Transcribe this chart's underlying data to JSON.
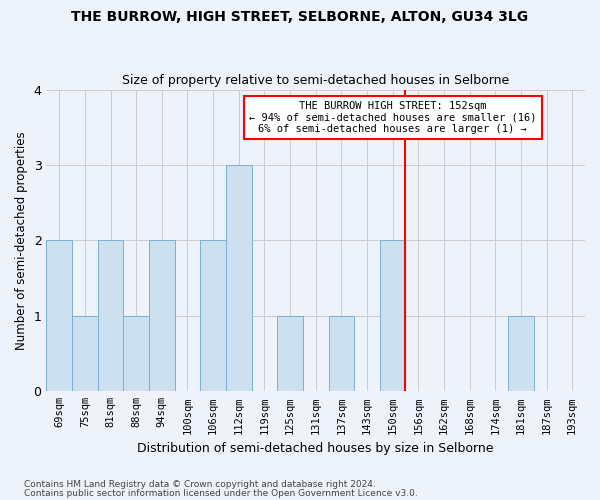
{
  "title": "THE BURROW, HIGH STREET, SELBORNE, ALTON, GU34 3LG",
  "subtitle": "Size of property relative to semi-detached houses in Selborne",
  "xlabel": "Distribution of semi-detached houses by size in Selborne",
  "ylabel": "Number of semi-detached properties",
  "footer1": "Contains HM Land Registry data © Crown copyright and database right 2024.",
  "footer2": "Contains public sector information licensed under the Open Government Licence v3.0.",
  "categories": [
    "69sqm",
    "75sqm",
    "81sqm",
    "88sqm",
    "94sqm",
    "100sqm",
    "106sqm",
    "112sqm",
    "119sqm",
    "125sqm",
    "131sqm",
    "137sqm",
    "143sqm",
    "150sqm",
    "156sqm",
    "162sqm",
    "168sqm",
    "174sqm",
    "181sqm",
    "187sqm",
    "193sqm"
  ],
  "values": [
    2,
    1,
    2,
    1,
    2,
    0,
    2,
    3,
    0,
    1,
    0,
    1,
    0,
    2,
    0,
    0,
    0,
    0,
    1,
    0,
    0
  ],
  "bar_color": "#cce0f0",
  "bar_edge_color": "#7ab0d4",
  "ref_line_index": 13.5,
  "ref_line_color": "red",
  "annotation_text": "THE BURROW HIGH STREET: 152sqm\n← 94% of semi-detached houses are smaller (16)\n6% of semi-detached houses are larger (1) →",
  "annotation_box_color": "white",
  "annotation_box_edgecolor": "red",
  "ylim": [
    0,
    4
  ],
  "yticks": [
    0,
    1,
    2,
    3,
    4
  ],
  "grid_color": "#cccccc",
  "background_color": "#eef2fb"
}
